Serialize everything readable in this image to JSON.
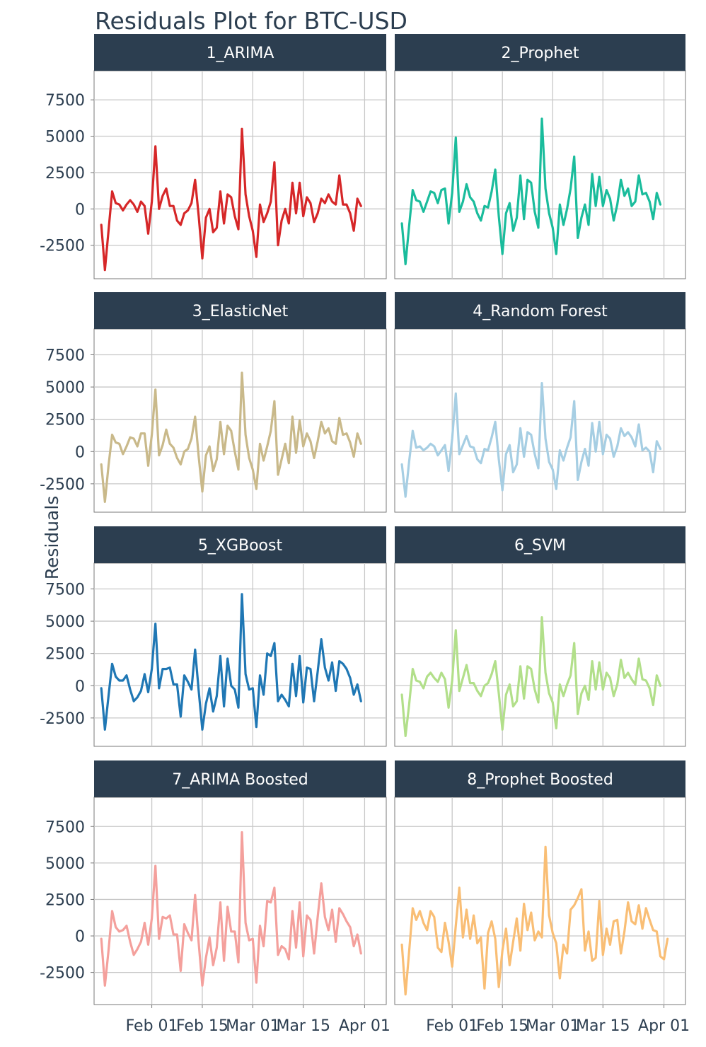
{
  "chart_data": {
    "type": "line",
    "title": "Residuals Plot for BTC-USD",
    "xlabel": "",
    "ylabel": "Residuals",
    "x_tick_labels": [
      "Feb 01",
      "Feb 15",
      "Mar 01",
      "Mar 15",
      "Apr 01"
    ],
    "x_tick_dates": [
      "2022-02-01",
      "2022-02-15",
      "2022-03-01",
      "2022-03-15",
      "2022-04-01"
    ],
    "x_range": [
      "2022-01-16",
      "2022-04-07"
    ],
    "y_ticks": [
      -2500,
      0,
      2500,
      5000,
      7500
    ],
    "ylim_rows": [
      [
        -4800,
        9500
      ],
      [
        -4700,
        9500
      ],
      [
        -4700,
        9500
      ],
      [
        -4700,
        9500
      ]
    ],
    "grid": true,
    "legend": "none",
    "layout": "4 rows x 2 columns facets",
    "series": [
      {
        "name": "1_ARIMA",
        "color": "#d62728",
        "start": "2022-01-18",
        "values": [
          -1100,
          -4200,
          -1500,
          1200,
          400,
          300,
          -100,
          300,
          600,
          300,
          -200,
          500,
          200,
          -1700,
          500,
          4300,
          0,
          900,
          1400,
          200,
          200,
          -800,
          -1100,
          -300,
          -100,
          400,
          2000,
          -500,
          -3400,
          -600,
          0,
          -1600,
          -1300,
          1200,
          -1000,
          1000,
          800,
          -500,
          -1400,
          5500,
          1000,
          -500,
          -1500,
          -3300,
          300,
          -900,
          -300,
          500,
          3200,
          -2500,
          -800,
          0,
          -1000,
          1800,
          -300,
          1800,
          -500,
          800,
          400,
          -900,
          -300,
          700,
          400,
          1000,
          500,
          300,
          2300,
          300,
          300,
          -300,
          -1500,
          700,
          200
        ]
      },
      {
        "name": "2_Prophet",
        "color": "#1abc9c",
        "start": "2022-01-18",
        "values": [
          -1000,
          -3800,
          -1200,
          1300,
          600,
          500,
          -200,
          500,
          1200,
          1100,
          400,
          1300,
          1400,
          -1000,
          1100,
          4900,
          -200,
          500,
          1700,
          800,
          500,
          -300,
          -800,
          200,
          100,
          1200,
          2700,
          -500,
          -3100,
          -300,
          400,
          -1500,
          -600,
          2300,
          -700,
          2000,
          1800,
          -200,
          -1300,
          6200,
          1400,
          -300,
          -1300,
          -3100,
          300,
          -1100,
          0,
          1400,
          3600,
          -2000,
          -600,
          300,
          -1100,
          2400,
          200,
          2200,
          200,
          1300,
          700,
          -800,
          300,
          2000,
          900,
          1400,
          200,
          500,
          2300,
          1000,
          1100,
          500,
          -700,
          1100,
          300
        ]
      },
      {
        "name": "3_ElasticNet",
        "color": "#c9b98a",
        "start": "2022-01-18",
        "values": [
          -1000,
          -3900,
          -1100,
          1300,
          700,
          600,
          -200,
          400,
          1100,
          1000,
          400,
          1400,
          1400,
          -1100,
          1300,
          4800,
          -300,
          500,
          1700,
          600,
          300,
          -500,
          -1000,
          0,
          200,
          1000,
          2700,
          -400,
          -3100,
          -300,
          400,
          -1500,
          -600,
          2300,
          -200,
          2000,
          1600,
          0,
          -1400,
          6100,
          1300,
          -500,
          -1400,
          -2900,
          600,
          -700,
          400,
          1600,
          3900,
          -1800,
          -600,
          600,
          -900,
          2700,
          -100,
          2400,
          400,
          1400,
          800,
          -500,
          800,
          2300,
          1400,
          1800,
          800,
          600,
          2600,
          1300,
          1400,
          700,
          -400,
          1400,
          600
        ]
      },
      {
        "name": "4_Random Forest",
        "color": "#a6cee3",
        "start": "2022-01-18",
        "values": [
          -1000,
          -3500,
          -800,
          1600,
          300,
          400,
          100,
          300,
          600,
          400,
          -300,
          100,
          500,
          -1500,
          1000,
          4500,
          -200,
          500,
          1200,
          400,
          300,
          -600,
          -900,
          200,
          100,
          1100,
          2300,
          -600,
          -3000,
          -200,
          500,
          -1600,
          -1000,
          1800,
          -400,
          1500,
          1300,
          -200,
          -1300,
          5300,
          1000,
          -800,
          -1400,
          -2900,
          100,
          -700,
          300,
          1100,
          3900,
          -2200,
          -800,
          200,
          -1100,
          2200,
          0,
          2300,
          -200,
          1300,
          1000,
          -400,
          400,
          1800,
          1200,
          1500,
          1100,
          400,
          2100,
          100,
          300,
          0,
          -1600,
          800,
          200
        ]
      },
      {
        "name": "5_XGBoost",
        "color": "#1f77b4",
        "start": "2022-01-18",
        "values": [
          -200,
          -3400,
          -800,
          1700,
          700,
          400,
          400,
          800,
          -300,
          -1200,
          -900,
          -400,
          900,
          -500,
          1300,
          4800,
          -200,
          1300,
          1300,
          1400,
          100,
          100,
          -2400,
          800,
          300,
          -300,
          2800,
          -400,
          -3400,
          -1400,
          -200,
          -2000,
          -800,
          2300,
          -1600,
          2100,
          0,
          -300,
          -1700,
          7100,
          900,
          -300,
          -200,
          -3200,
          800,
          -700,
          2500,
          2300,
          3300,
          -1200,
          -700,
          -1100,
          -1600,
          1700,
          -800,
          2300,
          -1300,
          1400,
          1300,
          -1200,
          1100,
          3600,
          1400,
          400,
          1800,
          -400,
          1900,
          1700,
          1300,
          600,
          -700,
          100,
          -1200
        ]
      },
      {
        "name": "6_SVM",
        "color": "#b2df8a",
        "start": "2022-01-18",
        "values": [
          -700,
          -3900,
          -1500,
          1300,
          400,
          300,
          -200,
          700,
          1000,
          600,
          300,
          1000,
          500,
          -1700,
          400,
          4300,
          -400,
          600,
          1600,
          200,
          200,
          -400,
          -800,
          0,
          200,
          900,
          1900,
          -600,
          -3400,
          -700,
          100,
          -1600,
          -1200,
          1500,
          -1000,
          1500,
          1300,
          -300,
          -1300,
          5300,
          1000,
          -600,
          -1300,
          -3300,
          100,
          -800,
          100,
          800,
          3300,
          -2200,
          -600,
          0,
          -1100,
          1900,
          -300,
          1800,
          -300,
          1000,
          600,
          -800,
          100,
          2000,
          600,
          1000,
          500,
          100,
          2100,
          500,
          400,
          -200,
          -1500,
          800,
          0
        ]
      },
      {
        "name": "7_ARIMA Boosted",
        "color": "#f4a09c",
        "start": "2022-01-18",
        "values": [
          -200,
          -3400,
          -1000,
          1700,
          600,
          300,
          400,
          700,
          -400,
          -1300,
          -900,
          -400,
          900,
          -600,
          1200,
          4800,
          -200,
          1300,
          1200,
          1400,
          100,
          100,
          -2400,
          800,
          200,
          -300,
          2800,
          -500,
          -3400,
          -1500,
          -100,
          -2000,
          -800,
          2300,
          -1700,
          2000,
          300,
          300,
          -1800,
          7100,
          900,
          -300,
          -200,
          -3200,
          700,
          -700,
          2400,
          2300,
          3300,
          -1300,
          -700,
          -900,
          -1600,
          1700,
          -800,
          2300,
          -1400,
          1400,
          1100,
          -1200,
          1300,
          3600,
          1300,
          400,
          1800,
          -400,
          1900,
          1500,
          1000,
          600,
          -700,
          100,
          -1200
        ]
      },
      {
        "name": "8_Prophet Boosted",
        "color": "#f9be75",
        "start": "2022-01-18",
        "values": [
          -600,
          -4000,
          -1100,
          1900,
          1100,
          1700,
          900,
          400,
          1700,
          1300,
          -800,
          -1100,
          900,
          -400,
          -2100,
          700,
          3300,
          -100,
          1800,
          -200,
          1400,
          -500,
          -100,
          -3600,
          200,
          1000,
          -200,
          -3500,
          -1000,
          500,
          -2000,
          -400,
          1200,
          -1000,
          2200,
          400,
          1600,
          -300,
          300,
          -100,
          6100,
          1400,
          200,
          -500,
          -2900,
          -600,
          -1200,
          1800,
          2100,
          2600,
          3200,
          -1000,
          300,
          -1700,
          -1500,
          2400,
          -1300,
          500,
          -600,
          1000,
          1100,
          -1200,
          300,
          2300,
          1000,
          800,
          2100,
          500,
          1900,
          1100,
          400,
          300,
          -1400,
          -1600,
          -200
        ]
      }
    ]
  }
}
